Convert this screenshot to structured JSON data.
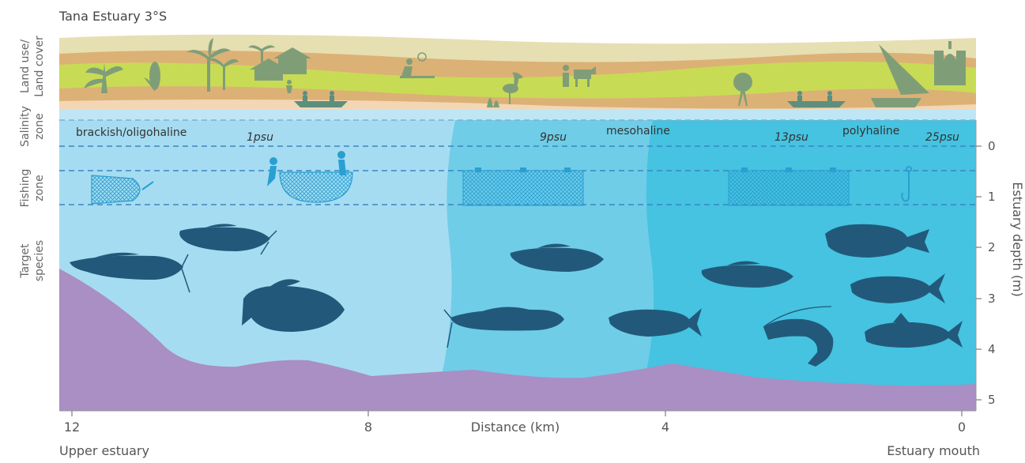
{
  "title": "Tana Estuary 3°S",
  "row_labels": {
    "land_line1": "Land use/",
    "land_line2": "Land cover",
    "salinity_line1": "Salinity",
    "salinity_line2": "zone",
    "fishing_line1": "Fishing",
    "fishing_line2": "zone",
    "target_line1": "Target",
    "target_line2": "species"
  },
  "zones": {
    "brackish": "brackish/oligohaline",
    "mesohaline": "mesohaline",
    "polyhaline": "polyhaline"
  },
  "salinity_marks": {
    "psu1": "1psu",
    "psu9": "9psu",
    "psu13": "13psu",
    "psu25": "25psu"
  },
  "x_axis": {
    "label": "Distance (km)",
    "ticks": [
      "12",
      "8",
      "4",
      "0"
    ],
    "left_end": "Upper estuary",
    "right_end": "Estuary mouth"
  },
  "y_axis": {
    "label": "Estuary depth (m)",
    "ticks": [
      "0",
      "1",
      "2",
      "3",
      "4",
      "5"
    ]
  },
  "colors": {
    "zone_brackish": "#a6dcf1",
    "zone_meso": "#6fcde8",
    "zone_poly": "#45c3e0",
    "seabed": "#a98fc3",
    "fish": "#22597a",
    "gear": "#2a9fd1",
    "land_green": "#c8db55",
    "land_beige": "#e6dfb2",
    "land_orange": "#dcb176",
    "land_gray": "#7f9e78"
  }
}
